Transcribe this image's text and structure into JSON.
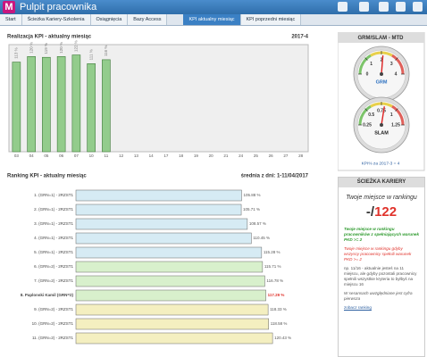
{
  "header": {
    "logo": "M",
    "title": "Pulpit pracownika"
  },
  "tabs": {
    "left": [
      "Start",
      "Ścieżka Kariery-Szkolenia",
      "Osiągnięcia",
      "Bazy Access"
    ],
    "right": [
      "KPI aktualny miesiąc",
      "KPI poprzedni miesiąc"
    ],
    "active_right": 0
  },
  "chart_data": [
    {
      "type": "bar",
      "title": "Realizacja KPI - aktualny miesiąc",
      "subtitle": "2017-4",
      "categories": [
        "03",
        "04",
        "05",
        "06",
        "07",
        "10",
        "11",
        "12",
        "13",
        "14",
        "17",
        "18",
        "19",
        "20",
        "21",
        "24",
        "25",
        "26",
        "27",
        "28"
      ],
      "values": [
        113,
        120,
        119,
        120,
        122,
        111,
        116,
        null,
        null,
        null,
        null,
        null,
        null,
        null,
        null,
        null,
        null,
        null,
        null,
        null
      ],
      "value_labels": [
        "113 %",
        "120 %",
        "119 %",
        "120 %",
        "122 %",
        "111 %",
        "116 %",
        null,
        null,
        null,
        null,
        null,
        null,
        null,
        null,
        null,
        null,
        null,
        null,
        null
      ],
      "ylim": [
        0,
        135
      ],
      "color": "#93cc8c"
    },
    {
      "type": "hbar",
      "title": "Ranking KPI - aktualny miesiąc",
      "subtitle": "średnia z dni: 1-11/04/2017",
      "categories": [
        "1. (GRN=1) - 2RZST1",
        "2. (GRN=1) - 2RZST1",
        "3. (GRN=1) - 2RZST1",
        "4. (GRN=1) - 2RZST1",
        "5. (GRN=1) - 2RZST1",
        "6. (GRN=2) - 2RZST1",
        "7. (GRN=2) - 2RZST1",
        "8. Paplonski Kamil (GRN=2)",
        "9. (GRN=2) - 2RZST1",
        "10. (GRN=2) - 2RZST1",
        "11. (GRN=2) - 2RZST1"
      ],
      "values": [
        105.88,
        105.71,
        108.57,
        110.45,
        115.28,
        115.71,
        116.78,
        117.29,
        118.33,
        118.58,
        120.43
      ],
      "value_labels": [
        "105.88 %",
        "105.71 %",
        "108.57 %",
        "110.45 %",
        "115.28 %",
        "115.71 %",
        "116.78 %",
        "117.29 %",
        "118.33 %",
        "118.58 %",
        "120.43 %"
      ],
      "colors": [
        "#d6ebf4",
        "#d6ebf4",
        "#d6ebf4",
        "#d6ebf4",
        "#d6ebf4",
        "#d8f0cc",
        "#d8f0cc",
        "#d8f0cc",
        "#f4efc0",
        "#f4efc0",
        "#f4efc0"
      ],
      "highlight": 7,
      "xlim": [
        28,
        125
      ]
    },
    {
      "type": "gauge",
      "title": "GRM",
      "value": 2.1,
      "ylim": [
        0,
        4
      ],
      "yticks": [
        0,
        1,
        2,
        3,
        4
      ]
    },
    {
      "type": "gauge",
      "title": "SLAM",
      "value": 0.8,
      "ylim": [
        0.25,
        1.25
      ],
      "yticks": [
        0.25,
        0.5,
        0.75,
        1,
        1.25
      ]
    }
  ],
  "gauge_panel": {
    "title": "GRM/SLAM - MTD",
    "caption": "KPI% za 2017-3 = 4"
  },
  "career": {
    "title": "ŚCIEŻKA KARIERY",
    "subtitle": "Twoje miejsce w rankingu",
    "rank": "-/",
    "total": 122,
    "green_note": "Twoje miejsce w rankingu pracowników z spełniających warunek PKD >= 2",
    "red_note": "Twoje miejsce w rankingu gdyby wszyscy pracownicy spełnili warunek PKD >= 2",
    "example": "np. 11/16 - aktualnie jesteś na 11 miejscu, ale gdyby pozostali pracownicy spełnili wszystkie kryteria to byłbyś na miejscu 16",
    "note": "W sesansach uwzględniane jest cyfra pierwsza",
    "link": "zobacz ranking"
  }
}
